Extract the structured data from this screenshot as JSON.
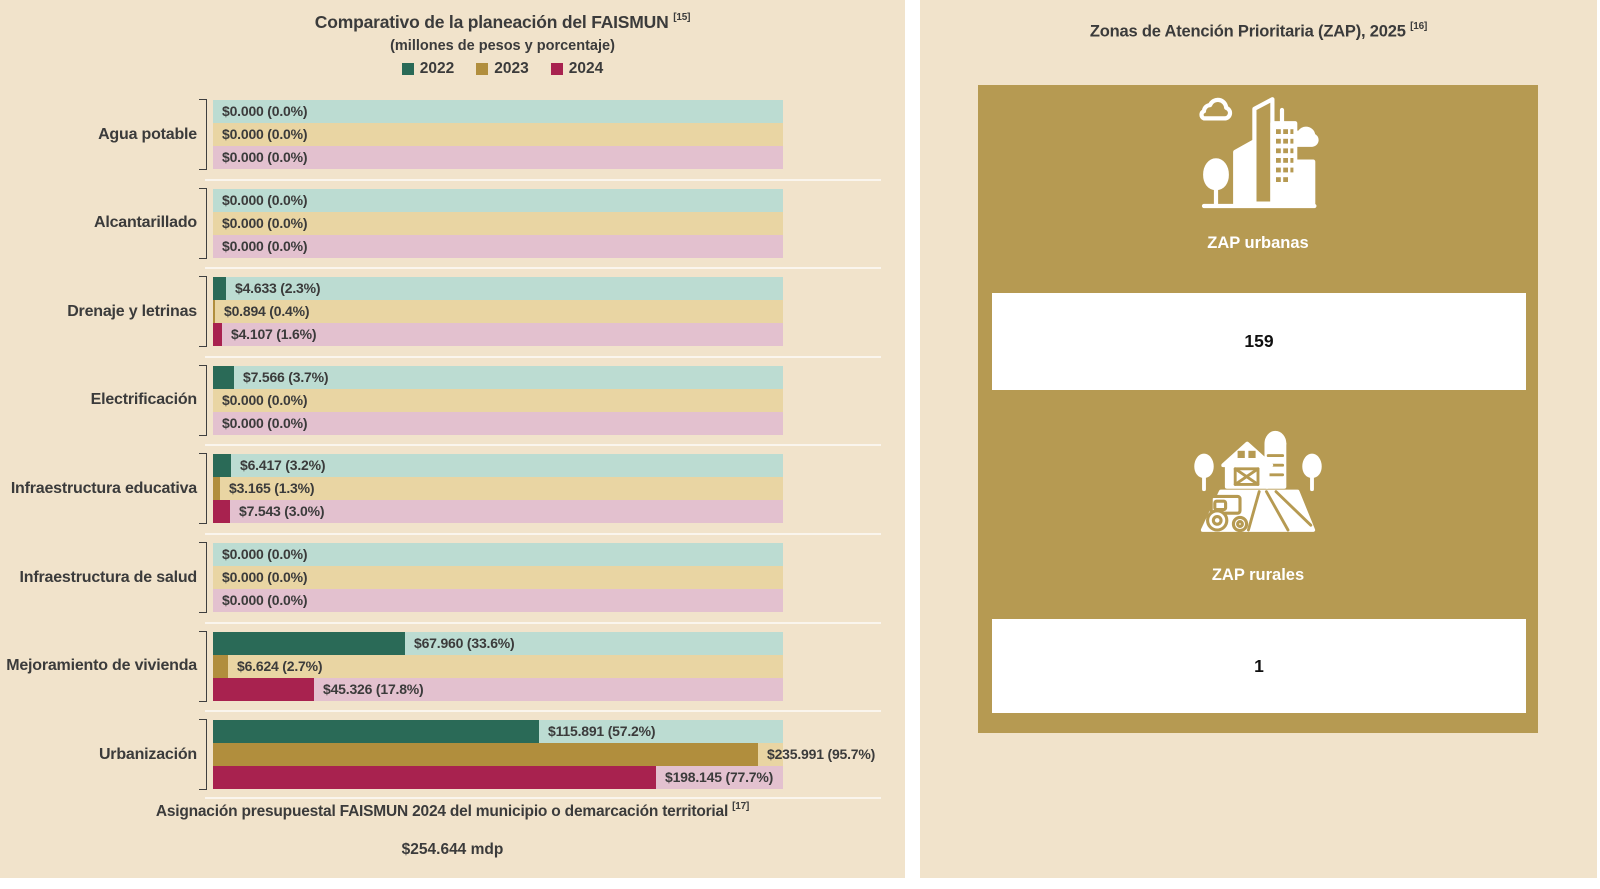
{
  "chart_data": {
    "type": "bar",
    "orientation": "horizontal",
    "title": "Comparativo de la planeación del FAISMUN",
    "title_sup": "[15]",
    "subtitle": "(millones de pesos y porcentaje)",
    "legend_position": "top",
    "xlim": [
      0,
      100
    ],
    "categories": [
      "Agua potable",
      "Alcantarillado",
      "Drenaje y letrinas",
      "Electrificación",
      "Infraestructura educativa",
      "Infraestructura de salud",
      "Mejoramiento de vivienda",
      "Urbanización"
    ],
    "series": [
      {
        "name": "2022",
        "color": "#2a6a57",
        "track_color": "#bcdcd2",
        "values_mdp": [
          0.0,
          0.0,
          4.633,
          7.566,
          6.417,
          0.0,
          67.96,
          115.891
        ],
        "values_pct": [
          0.0,
          0.0,
          2.3,
          3.7,
          3.2,
          0.0,
          33.6,
          57.2
        ],
        "labels": [
          "$0.000 (0.0%)",
          "$0.000 (0.0%)",
          "$4.633 (2.3%)",
          "$7.566 (3.7%)",
          "$6.417 (3.2%)",
          "$0.000 (0.0%)",
          "$67.960 (33.6%)",
          "$115.891 (57.2%)"
        ]
      },
      {
        "name": "2023",
        "color": "#b18e3d",
        "track_color": "#e9d5a3",
        "values_mdp": [
          0.0,
          0.0,
          0.894,
          0.0,
          3.165,
          0.0,
          6.624,
          235.991
        ],
        "values_pct": [
          0.0,
          0.0,
          0.4,
          0.0,
          1.3,
          0.0,
          2.7,
          95.7
        ],
        "labels": [
          "$0.000 (0.0%)",
          "$0.000 (0.0%)",
          "$0.894 (0.4%)",
          "$0.000 (0.0%)",
          "$3.165 (1.3%)",
          "$0.000 (0.0%)",
          "$6.624 (2.7%)",
          "$235.991 (95.7%)"
        ]
      },
      {
        "name": "2024",
        "color": "#a8224f",
        "track_color": "#e3c1cf",
        "values_mdp": [
          0.0,
          0.0,
          4.107,
          0.0,
          7.543,
          0.0,
          45.326,
          198.145
        ],
        "values_pct": [
          0.0,
          0.0,
          1.6,
          0.0,
          3.0,
          0.0,
          17.8,
          77.7
        ],
        "labels": [
          "$0.000 (0.0%)",
          "$0.000 (0.0%)",
          "$4.107 (1.6%)",
          "$0.000 (0.0%)",
          "$7.543 (3.0%)",
          "$0.000 (0.0%)",
          "$45.326 (17.8%)",
          "$198.145 (77.7%)"
        ]
      }
    ],
    "footnote": "Asignación presupuestal FAISMUN 2024 del municipio o demarcación territorial",
    "footnote_sup": "[17]",
    "total": "$254.644 mdp"
  },
  "right_panel": {
    "title": "Zonas de Atención Prioritaria (ZAP), 2025",
    "title_sup": "[16]",
    "card_color": "#b69a52",
    "cards": [
      {
        "icon": "city-icon",
        "label": "ZAP urbanas",
        "value": "159"
      },
      {
        "icon": "farm-icon",
        "label": "ZAP rurales",
        "value": "1"
      }
    ]
  },
  "colors": {
    "background": "#f1e3cb",
    "text": "#3b3b3b",
    "bracket": "#3f3f3f"
  }
}
